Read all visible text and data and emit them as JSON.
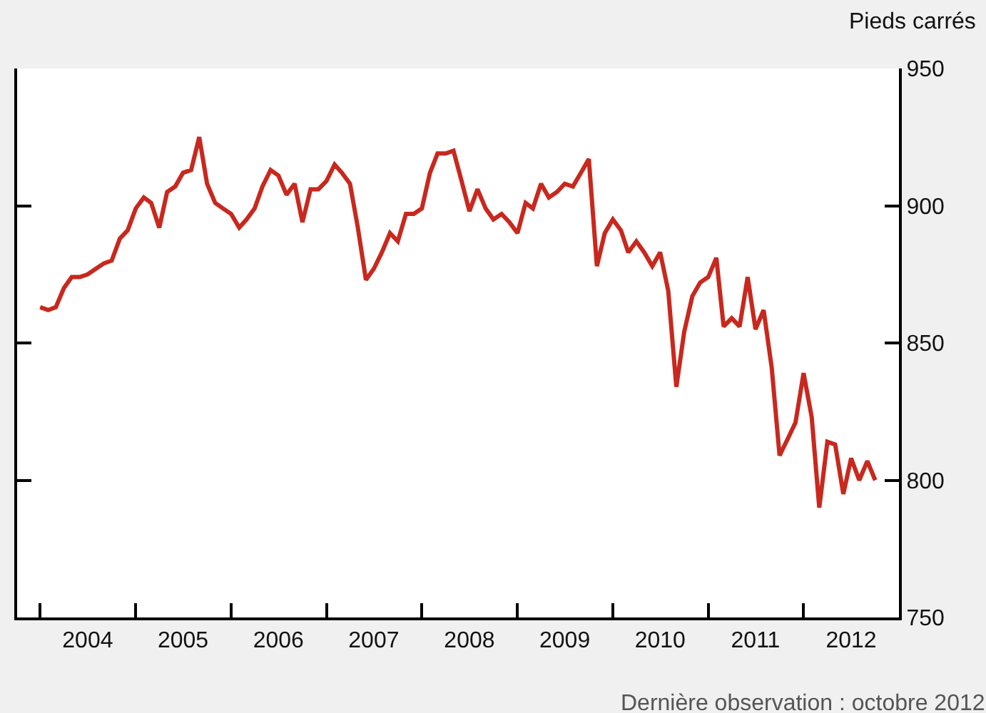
{
  "chart_data": {
    "type": "line",
    "ylabel": "Pieds carrés",
    "annotations": [
      "Dernière observation : octobre 2012"
    ],
    "x": [
      "2004-01",
      "2004-02",
      "2004-03",
      "2004-04",
      "2004-05",
      "2004-06",
      "2004-07",
      "2004-08",
      "2004-09",
      "2004-10",
      "2004-11",
      "2004-12",
      "2005-01",
      "2005-02",
      "2005-03",
      "2005-04",
      "2005-05",
      "2005-06",
      "2005-07",
      "2005-08",
      "2005-09",
      "2005-10",
      "2005-11",
      "2005-12",
      "2006-01",
      "2006-02",
      "2006-03",
      "2006-04",
      "2006-05",
      "2006-06",
      "2006-07",
      "2006-08",
      "2006-09",
      "2006-10",
      "2006-11",
      "2006-12",
      "2007-01",
      "2007-02",
      "2007-03",
      "2007-04",
      "2007-05",
      "2007-06",
      "2007-07",
      "2007-08",
      "2007-09",
      "2007-10",
      "2007-11",
      "2007-12",
      "2008-01",
      "2008-02",
      "2008-03",
      "2008-04",
      "2008-05",
      "2008-06",
      "2008-07",
      "2008-08",
      "2008-09",
      "2008-10",
      "2008-11",
      "2008-12",
      "2009-01",
      "2009-02",
      "2009-03",
      "2009-04",
      "2009-05",
      "2009-06",
      "2009-07",
      "2009-08",
      "2009-09",
      "2009-10",
      "2009-11",
      "2009-12",
      "2010-01",
      "2010-02",
      "2010-03",
      "2010-04",
      "2010-05",
      "2010-06",
      "2010-07",
      "2010-08",
      "2010-09",
      "2010-10",
      "2010-11",
      "2010-12",
      "2011-01",
      "2011-02",
      "2011-03",
      "2011-04",
      "2011-05",
      "2011-06",
      "2011-07",
      "2011-08",
      "2011-09",
      "2011-10",
      "2011-11",
      "2011-12",
      "2012-01",
      "2012-02",
      "2012-03",
      "2012-04",
      "2012-05",
      "2012-06",
      "2012-07",
      "2012-08",
      "2012-09",
      "2012-10"
    ],
    "series": [
      {
        "color": "#c8281e",
        "values": [
          863,
          862,
          863,
          870,
          874,
          874,
          875,
          877,
          879,
          880,
          888,
          891,
          899,
          903,
          901,
          892,
          905,
          907,
          912,
          913,
          925,
          908,
          901,
          899,
          897,
          892,
          895,
          899,
          907,
          913,
          911,
          904,
          908,
          894,
          906,
          906,
          909,
          915,
          912,
          908,
          892,
          873,
          877,
          883,
          890,
          887,
          897,
          897,
          899,
          912,
          919,
          919,
          920,
          909,
          898,
          906,
          899,
          895,
          897,
          894,
          890,
          901,
          899,
          908,
          903,
          905,
          908,
          907,
          912,
          917,
          878,
          890,
          895,
          891,
          883,
          887,
          883,
          878,
          883,
          869,
          834,
          854,
          867,
          872,
          874,
          881,
          856,
          859,
          856,
          874,
          855,
          862,
          841,
          809,
          815,
          821,
          839,
          823,
          790,
          814,
          813,
          795,
          808,
          800,
          807,
          800
        ]
      }
    ],
    "xlim": [
      "2003-10-05",
      "2012-12-31"
    ],
    "xticks": [
      {
        "value": "2004-01-01",
        "label": null
      },
      {
        "value": "2004-07-01",
        "label": "2004"
      },
      {
        "value": "2005-01-01",
        "label": null
      },
      {
        "value": "2005-07-01",
        "label": "2005"
      },
      {
        "value": "2006-01-01",
        "label": null
      },
      {
        "value": "2006-07-01",
        "label": "2006"
      },
      {
        "value": "2007-01-01",
        "label": null
      },
      {
        "value": "2007-07-01",
        "label": "2007"
      },
      {
        "value": "2008-01-01",
        "label": null
      },
      {
        "value": "2008-07-01",
        "label": "2008"
      },
      {
        "value": "2009-01-01",
        "label": null
      },
      {
        "value": "2009-07-01",
        "label": "2009"
      },
      {
        "value": "2010-01-01",
        "label": null
      },
      {
        "value": "2010-07-01",
        "label": "2010"
      },
      {
        "value": "2011-01-01",
        "label": null
      },
      {
        "value": "2011-07-01",
        "label": "2011"
      },
      {
        "value": "2012-01-01",
        "label": null
      },
      {
        "value": "2012-07-01",
        "label": "2012"
      }
    ],
    "ylim": [
      750,
      950
    ],
    "yticks": [
      750,
      800,
      850,
      900,
      950
    ]
  }
}
